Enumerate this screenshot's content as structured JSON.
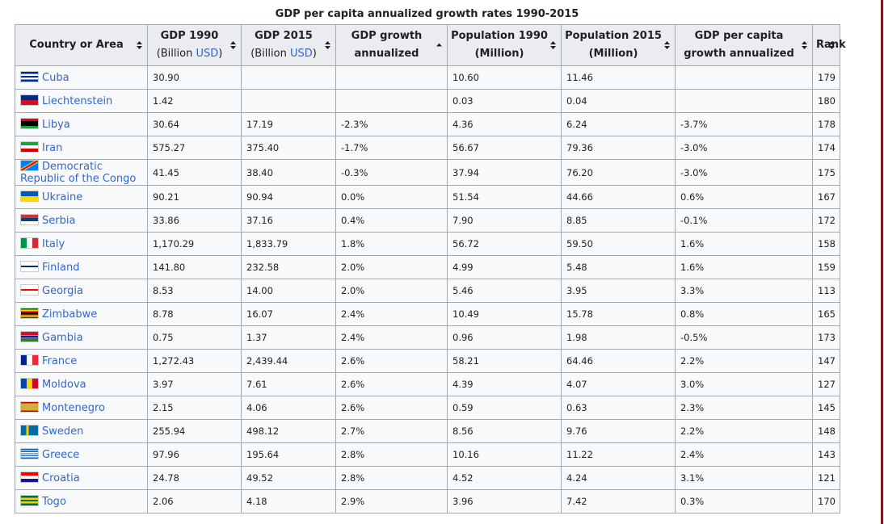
{
  "caption": "GDP per capita annualized growth rates 1990-2015",
  "headers": [
    {
      "title": "Country or Area"
    },
    {
      "title": "GDP 1990",
      "sub": [
        "(Billion ",
        "USD",
        ")"
      ]
    },
    {
      "title": "GDP 2015",
      "sub": [
        "(Billion ",
        "USD",
        ")"
      ]
    },
    {
      "title": "GDP growth",
      "line2": "annualized"
    },
    {
      "title": "Population 1990",
      "line2": "(Million)"
    },
    {
      "title": "Population 2015",
      "line2": "(Million)"
    },
    {
      "title": "GDP per capita",
      "line2": "growth annualized"
    },
    {
      "title": "Rank"
    }
  ],
  "rows": [
    [
      "Cuba",
      "30.90",
      null,
      null,
      "10.60",
      "11.46",
      null,
      "179"
    ],
    [
      "Liechtenstein",
      "1.42",
      null,
      null,
      "0.03",
      "0.04",
      null,
      "180"
    ],
    [
      "Libya",
      "30.64",
      "17.19",
      "-2.3%",
      "4.36",
      "6.24",
      "-3.7%",
      "178"
    ],
    [
      "Iran",
      "575.27",
      "375.40",
      "-1.7%",
      "56.67",
      "79.36",
      "-3.0%",
      "174"
    ],
    [
      "Democratic Republic of the Congo",
      "41.45",
      "38.40",
      "-0.3%",
      "37.94",
      "76.20",
      "-3.0%",
      "175"
    ],
    [
      "Ukraine",
      "90.21",
      "90.94",
      "0.0%",
      "51.54",
      "44.66",
      "0.6%",
      "167"
    ],
    [
      "Serbia",
      "33.86",
      "37.16",
      "0.4%",
      "7.90",
      "8.85",
      "-0.1%",
      "172"
    ],
    [
      "Italy",
      "1,170.29",
      "1,833.79",
      "1.8%",
      "56.72",
      "59.50",
      "1.6%",
      "158"
    ],
    [
      "Finland",
      "141.80",
      "232.58",
      "2.0%",
      "4.99",
      "5.48",
      "1.6%",
      "159"
    ],
    [
      "Georgia",
      "8.53",
      "14.00",
      "2.0%",
      "5.46",
      "3.95",
      "3.3%",
      "113"
    ],
    [
      "Zimbabwe",
      "8.78",
      "16.07",
      "2.4%",
      "10.49",
      "15.78",
      "0.8%",
      "165"
    ],
    [
      "Gambia",
      "0.75",
      "1.37",
      "2.4%",
      "0.96",
      "1.98",
      "-0.5%",
      "173"
    ],
    [
      "France",
      "1,272.43",
      "2,439.44",
      "2.6%",
      "58.21",
      "64.46",
      "2.2%",
      "147"
    ],
    [
      "Moldova",
      "3.97",
      "7.61",
      "2.6%",
      "4.39",
      "4.07",
      "3.0%",
      "127"
    ],
    [
      "Montenegro",
      "2.15",
      "4.06",
      "2.6%",
      "0.59",
      "0.63",
      "2.3%",
      "145"
    ],
    [
      "Sweden",
      "255.94",
      "498.12",
      "2.7%",
      "8.56",
      "9.76",
      "2.2%",
      "148"
    ],
    [
      "Greece",
      "97.96",
      "195.64",
      "2.8%",
      "10.16",
      "11.22",
      "2.4%",
      "143"
    ],
    [
      "Croatia",
      "24.78",
      "49.52",
      "2.8%",
      "4.52",
      "4.24",
      "3.1%",
      "121"
    ],
    [
      "Togo",
      "2.06",
      "4.18",
      "2.9%",
      "3.96",
      "7.42",
      "0.3%",
      "170"
    ]
  ]
}
